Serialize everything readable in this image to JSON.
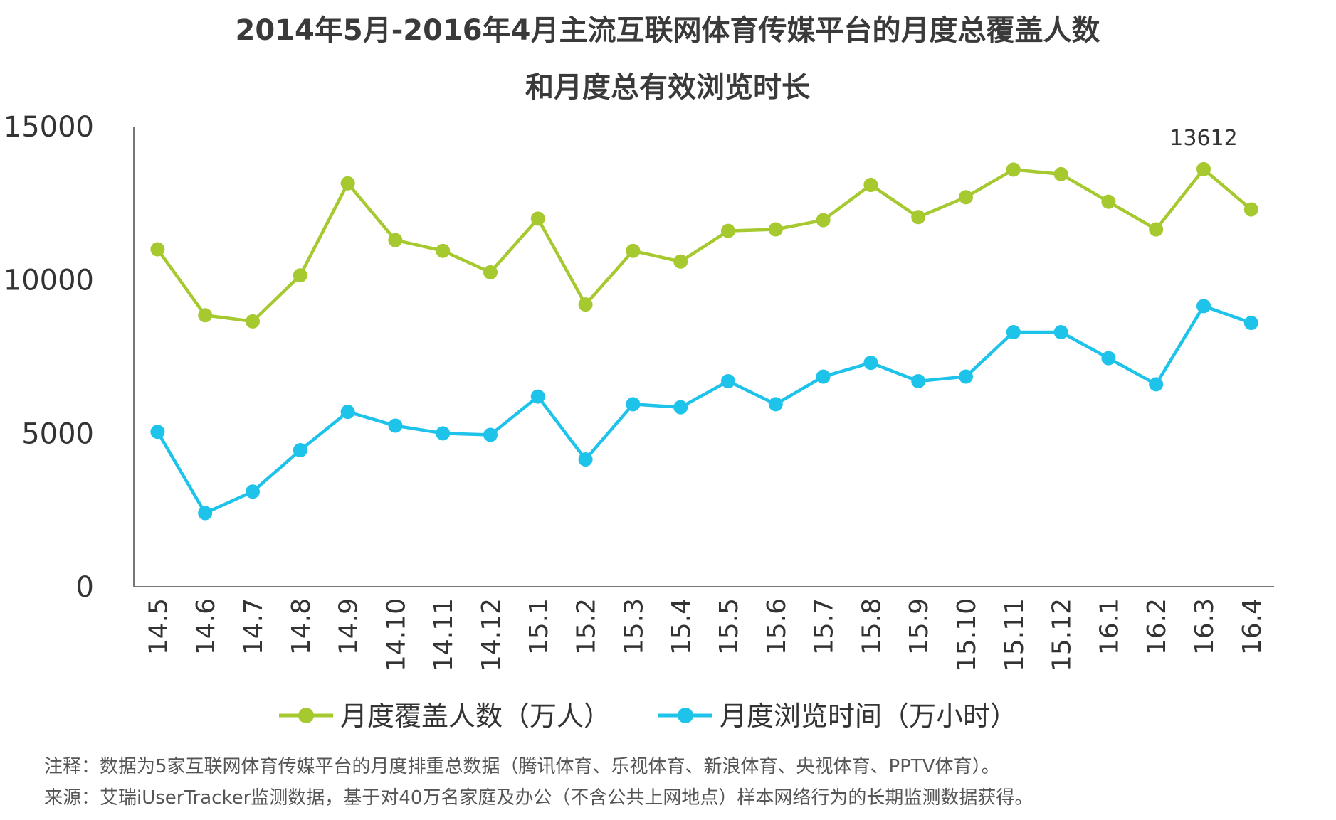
{
  "chart_data": {
    "type": "line",
    "title_lines": [
      "2014年5月-2016年4月主流互联网体育传媒平台的月度总覆盖人数",
      "和月度总有效浏览时长"
    ],
    "categories": [
      "14.5",
      "14.6",
      "14.7",
      "14.8",
      "14.9",
      "14.10",
      "14.11",
      "14.12",
      "15.1",
      "15.2",
      "15.3",
      "15.4",
      "15.5",
      "15.6",
      "15.7",
      "15.8",
      "15.9",
      "15.10",
      "15.11",
      "15.12",
      "16.1",
      "16.2",
      "16.3",
      "16.4"
    ],
    "series": [
      {
        "name": "月度覆盖人数（万人）",
        "color": "#a5c92f",
        "values": [
          11000,
          8850,
          8650,
          10150,
          13150,
          11300,
          10950,
          10250,
          12000,
          9200,
          10950,
          10600,
          11600,
          11650,
          11950,
          13100,
          12050,
          12700,
          13600,
          13450,
          12550,
          11650,
          13612,
          12300
        ]
      },
      {
        "name": "月度浏览时间（万小时）",
        "color": "#1ec3ea",
        "values": [
          5050,
          2400,
          3100,
          4450,
          5700,
          5250,
          5000,
          4950,
          6200,
          4150,
          5950,
          5850,
          6700,
          5950,
          6850,
          7300,
          6700,
          6850,
          8300,
          8300,
          7450,
          6600,
          9150,
          8600
        ]
      }
    ],
    "annotations": [
      {
        "series_index": 0,
        "category_index": 22,
        "text": "13612"
      }
    ],
    "y_ticks": [
      "0",
      "5000",
      "10000",
      "15000"
    ],
    "ylim": [
      0,
      15000
    ],
    "grid": false,
    "legend_position": "bottom",
    "notes": [
      "注释：数据为5家互联网体育传媒平台的月度排重总数据（腾讯体育、乐视体育、新浪体育、央视体育、PPTV体育）。",
      "来源：艾瑞iUserTracker监测数据，基于对40万名家庭及办公（不含公共上网地点）样本网络行为的长期监测数据获得。"
    ]
  }
}
